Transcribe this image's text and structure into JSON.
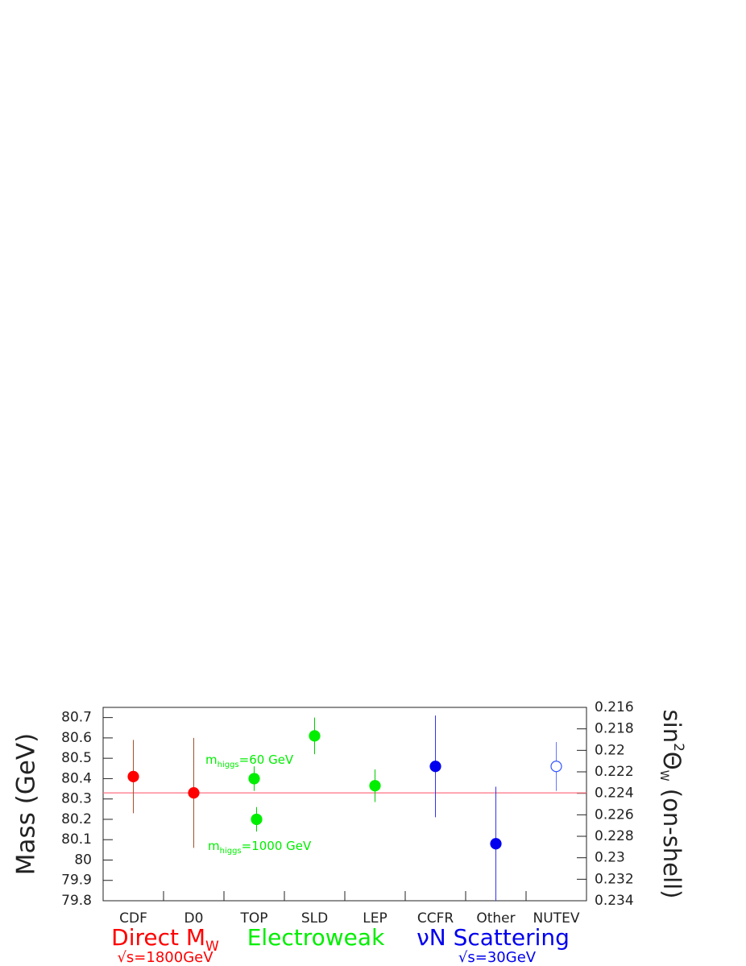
{
  "chart_data": {
    "type": "errorbar",
    "categories": [
      "CDF",
      "D0",
      "TOP",
      "SLD",
      "LEP",
      "CCFR",
      "Other",
      "NUTEV"
    ],
    "ylabel": "Mass (GeV)",
    "y2label": [
      "sin",
      "2",
      "Θ",
      "W",
      " (on-shell)"
    ],
    "ylim": [
      79.8,
      80.75
    ],
    "yticks": [
      79.8,
      79.9,
      80,
      80.1,
      80.2,
      80.3,
      80.4,
      80.5,
      80.6,
      80.7
    ],
    "y2lim": [
      0.234,
      0.216
    ],
    "y2ticks": [
      0.216,
      0.218,
      0.22,
      0.222,
      0.224,
      0.226,
      0.228,
      0.23,
      0.232,
      0.234
    ],
    "ref_line": {
      "value": 80.33,
      "color": "#ff7080"
    },
    "series": [
      {
        "color": "#ff0000",
        "error_color": "#a0522d",
        "marker": "filled",
        "points": [
          {
            "category": "CDF",
            "value": 80.41,
            "error": 0.18
          },
          {
            "category": "D0",
            "value": 80.33,
            "error": 0.27
          }
        ]
      },
      {
        "color": "#00ee00",
        "error_color": "#00cc00",
        "marker": "filled",
        "points": [
          {
            "category": "TOP",
            "value": 80.4,
            "error": 0.06
          },
          {
            "category": "TOP",
            "value": 80.2,
            "error": 0.06
          },
          {
            "category": "SLD",
            "value": 80.61,
            "error": 0.09
          },
          {
            "category": "LEP",
            "value": 80.365,
            "error": 0.08
          }
        ]
      },
      {
        "color": "#0000ee",
        "error_color": "#3333ee",
        "marker": "filled",
        "points": [
          {
            "category": "CCFR",
            "value": 80.46,
            "error": 0.25
          },
          {
            "category": "Other",
            "value": 80.08,
            "error": 0.28
          }
        ]
      },
      {
        "color": "#3355ff",
        "error_color": "#6677ff",
        "marker": "open",
        "points": [
          {
            "category": "NUTEV",
            "value": 80.46,
            "error": 0.12
          }
        ]
      }
    ],
    "annotations": [
      {
        "parts": [
          "m",
          "higgs",
          "=60 GeV"
        ],
        "color": "#00ee00"
      },
      {
        "parts": [
          "m",
          "higgs",
          "=1000 GeV"
        ],
        "color": "#00ee00"
      }
    ],
    "groups": [
      {
        "parts": [
          "Direct M",
          "W"
        ],
        "energy": "√s=1800GeV",
        "color": "#ff0000"
      },
      {
        "parts": [
          "Electroweak"
        ],
        "color": "#00ee00"
      },
      {
        "parts": [
          "νN Scattering"
        ],
        "energy": "√s=30GeV",
        "color": "#0000ee"
      }
    ]
  }
}
